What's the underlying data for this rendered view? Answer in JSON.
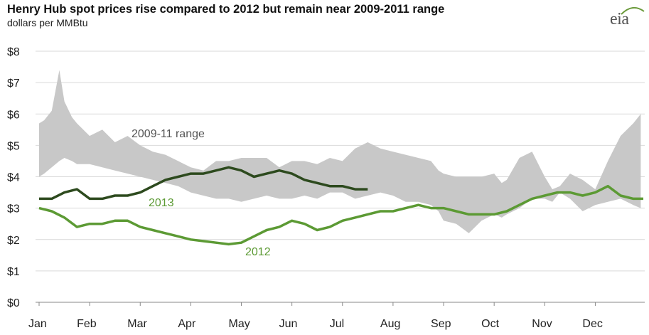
{
  "chart_data": {
    "type": "line",
    "title": "Henry Hub spot prices rise compared to 2012 but remain near 2009-2011  range",
    "subtitle": "dollars per MMBtu",
    "ylim": [
      0,
      8
    ],
    "yticks": [
      "$0",
      "$1",
      "$2",
      "$3",
      "$4",
      "$5",
      "$6",
      "$7",
      "$8"
    ],
    "ytick_values": [
      0,
      1,
      2,
      3,
      4,
      5,
      6,
      7,
      8
    ],
    "xticks": [
      "Jan",
      "Feb",
      "Mar",
      "Apr",
      "May",
      "Jun",
      "Jul",
      "Aug",
      "Sep",
      "Oct",
      "Nov",
      "Dec"
    ],
    "grid": true,
    "colors": {
      "range": "#c8c8c8",
      "s2013": "#2d4a1e",
      "s2012": "#5c9a34",
      "range_label": "#555555"
    },
    "range_series": {
      "name": "2009-11 range",
      "x": [
        0,
        0.1,
        0.25,
        0.4,
        0.5,
        0.65,
        0.75,
        1.0,
        1.25,
        1.5,
        1.75,
        2.0,
        2.25,
        2.5,
        2.75,
        3.0,
        3.25,
        3.5,
        3.75,
        4.0,
        4.25,
        4.5,
        4.75,
        5.0,
        5.25,
        5.5,
        5.75,
        6.0,
        6.25,
        6.5,
        6.75,
        7.0,
        7.25,
        7.5,
        7.75,
        7.9,
        8.0,
        8.25,
        8.5,
        8.75,
        9.0,
        9.15,
        9.25,
        9.5,
        9.75,
        10.0,
        10.15,
        10.3,
        10.5,
        10.75,
        11.0,
        11.25,
        11.5,
        11.75,
        11.9
      ],
      "low": [
        4.0,
        4.1,
        4.3,
        4.5,
        4.6,
        4.5,
        4.4,
        4.4,
        4.3,
        4.2,
        4.1,
        4.0,
        3.9,
        3.8,
        3.7,
        3.5,
        3.4,
        3.3,
        3.3,
        3.2,
        3.3,
        3.4,
        3.3,
        3.3,
        3.4,
        3.3,
        3.5,
        3.5,
        3.3,
        3.4,
        3.5,
        3.4,
        3.2,
        3.2,
        3.1,
        2.9,
        2.6,
        2.5,
        2.2,
        2.6,
        2.8,
        2.7,
        2.8,
        3.0,
        3.3,
        3.3,
        3.2,
        3.5,
        3.3,
        2.9,
        3.1,
        3.2,
        3.3,
        3.1,
        3.0
      ],
      "high": [
        5.7,
        5.8,
        6.1,
        7.4,
        6.4,
        5.9,
        5.7,
        5.3,
        5.5,
        5.1,
        5.3,
        5.0,
        4.8,
        4.7,
        4.5,
        4.3,
        4.2,
        4.5,
        4.5,
        4.6,
        4.6,
        4.6,
        4.3,
        4.5,
        4.5,
        4.4,
        4.6,
        4.5,
        4.9,
        5.1,
        4.9,
        4.8,
        4.7,
        4.6,
        4.5,
        4.2,
        4.1,
        4.0,
        4.0,
        4.0,
        4.1,
        3.8,
        3.9,
        4.6,
        4.8,
        4.0,
        3.6,
        3.7,
        4.1,
        3.9,
        3.6,
        4.5,
        5.3,
        5.7,
        6.0
      ]
    },
    "series": [
      {
        "name": "2013",
        "x": [
          0,
          0.25,
          0.5,
          0.75,
          1.0,
          1.25,
          1.5,
          1.75,
          2.0,
          2.25,
          2.5,
          2.75,
          3.0,
          3.25,
          3.5,
          3.75,
          4.0,
          4.25,
          4.5,
          4.75,
          5.0,
          5.25,
          5.5,
          5.75,
          6.0,
          6.25,
          6.5
        ],
        "values": [
          3.3,
          3.3,
          3.5,
          3.6,
          3.3,
          3.3,
          3.4,
          3.4,
          3.5,
          3.7,
          3.9,
          4.0,
          4.1,
          4.1,
          4.2,
          4.3,
          4.2,
          4.0,
          4.1,
          4.2,
          4.1,
          3.9,
          3.8,
          3.7,
          3.7,
          3.6,
          3.6
        ]
      },
      {
        "name": "2012",
        "x": [
          0,
          0.25,
          0.5,
          0.75,
          1.0,
          1.25,
          1.5,
          1.75,
          2.0,
          2.25,
          2.5,
          2.75,
          3.0,
          3.25,
          3.5,
          3.75,
          4.0,
          4.25,
          4.5,
          4.75,
          5.0,
          5.25,
          5.5,
          5.75,
          6.0,
          6.25,
          6.5,
          6.75,
          7.0,
          7.25,
          7.5,
          7.75,
          8.0,
          8.25,
          8.5,
          8.75,
          9.0,
          9.25,
          9.5,
          9.75,
          10.0,
          10.25,
          10.5,
          10.75,
          11.0,
          11.25,
          11.5,
          11.75,
          11.95
        ],
        "values": [
          3.0,
          2.9,
          2.7,
          2.4,
          2.5,
          2.5,
          2.6,
          2.6,
          2.4,
          2.3,
          2.2,
          2.1,
          2.0,
          1.95,
          1.9,
          1.85,
          1.9,
          2.1,
          2.3,
          2.4,
          2.6,
          2.5,
          2.3,
          2.4,
          2.6,
          2.7,
          2.8,
          2.9,
          2.9,
          3.0,
          3.1,
          3.0,
          3.0,
          2.9,
          2.8,
          2.8,
          2.8,
          2.9,
          3.1,
          3.3,
          3.4,
          3.5,
          3.5,
          3.4,
          3.5,
          3.7,
          3.4,
          3.3,
          3.3
        ]
      }
    ],
    "labels": {
      "range": "2009-11 range",
      "s2013": "2013",
      "s2012": "2012"
    }
  },
  "logo": {
    "text": "eia"
  }
}
